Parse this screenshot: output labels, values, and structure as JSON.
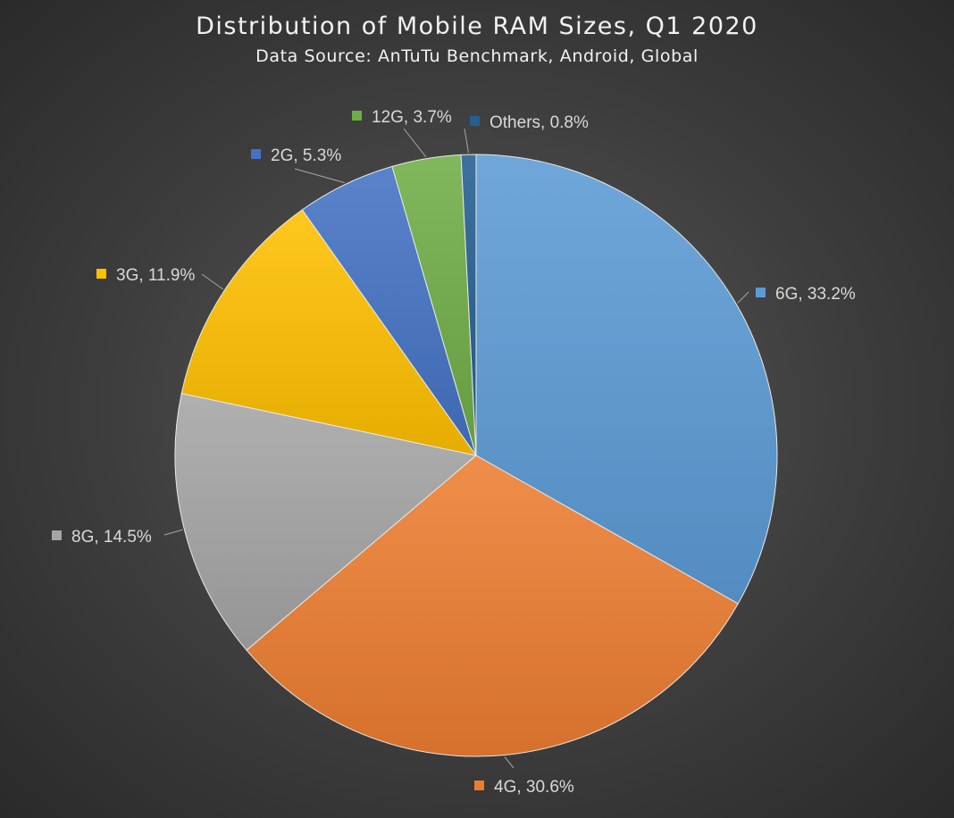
{
  "chart_data": {
    "type": "pie",
    "title": "Distribution of Mobile RAM Sizes, Q1 2020",
    "subtitle": "Data Source: AnTuTu Benchmark, Android, Global",
    "slices": [
      {
        "name": "6G",
        "value": 33.2,
        "label": "6G, 33.2%",
        "color": "#5b9bd5"
      },
      {
        "name": "4G",
        "value": 30.6,
        "label": "4G, 30.6%",
        "color": "#ed7d31"
      },
      {
        "name": "8G",
        "value": 14.5,
        "label": "8G, 14.5%",
        "color": "#a5a5a5"
      },
      {
        "name": "3G",
        "value": 11.9,
        "label": "3G, 11.9%",
        "color": "#ffc000"
      },
      {
        "name": "2G",
        "value": 5.3,
        "label": "2G, 5.3%",
        "color": "#4472c4"
      },
      {
        "name": "12G",
        "value": 3.7,
        "label": "12G, 3.7%",
        "color": "#70ad47"
      },
      {
        "name": "Others",
        "value": 0.8,
        "label": "Others, 0.8%",
        "color": "#255e91"
      }
    ],
    "start_angle": "12 o'clock",
    "direction": "clockwise",
    "legend": "none",
    "data_labels": "outside with leader lines"
  }
}
